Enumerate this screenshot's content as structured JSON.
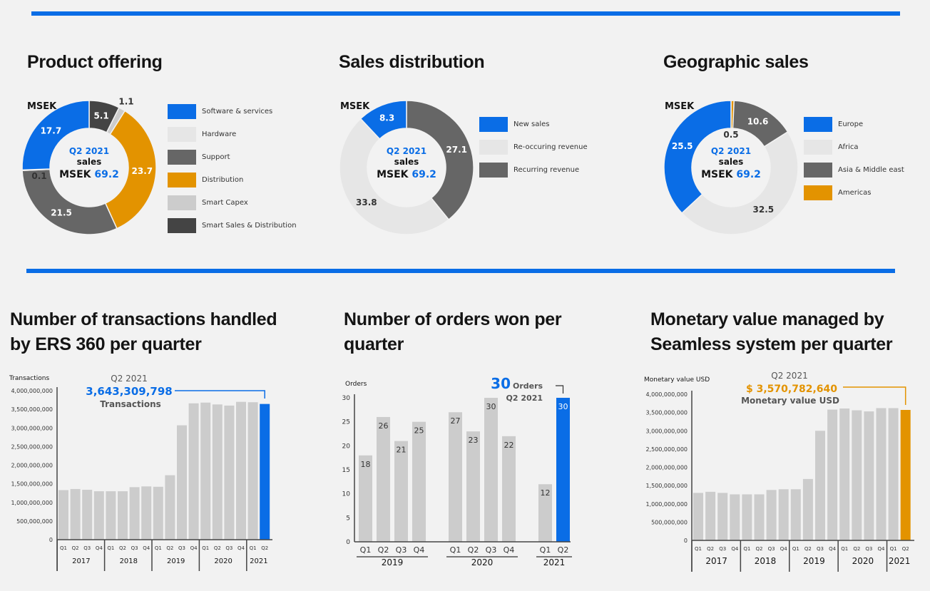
{
  "colors": {
    "blue": "#0a6de6",
    "orange": "#e39300",
    "dark": "#444444",
    "mid": "#666666",
    "light": "#e6e6e6",
    "smart_capex": "#cccccc",
    "bar_gray": "#cccccc"
  },
  "donuts": [
    {
      "title": "Product offering",
      "unit": "MSEK",
      "center_line1": "Q2 2021",
      "center_line2": "sales",
      "center_prefix": "MSEK",
      "center_value": "69.2",
      "slices": [
        {
          "name": "Smart Sales & Distribution",
          "value": 5.1,
          "color": "#444444",
          "label": "5.1"
        },
        {
          "name": "Smart Capex",
          "value": 1.1,
          "color": "#cccccc",
          "label": "1.1"
        },
        {
          "name": "Distribution",
          "value": 23.7,
          "color": "#e39300",
          "label": "23.7"
        },
        {
          "name": "Support",
          "value": 21.5,
          "color": "#666666",
          "label": "21.5"
        },
        {
          "name": "Hardware",
          "value": 0.1,
          "color": "#e6e6e6",
          "label": "0.1"
        },
        {
          "name": "Software & services",
          "value": 17.7,
          "color": "#0a6de6",
          "label": "17.7"
        }
      ],
      "legend": [
        {
          "label": "Software & services",
          "color": "#0a6de6"
        },
        {
          "label": "Hardware",
          "color": "#e6e6e6"
        },
        {
          "label": "Support",
          "color": "#666666"
        },
        {
          "label": "Distribution",
          "color": "#e39300"
        },
        {
          "label": "Smart Capex",
          "color": "#cccccc"
        },
        {
          "label": "Smart Sales & Distribution",
          "color": "#444444"
        }
      ]
    },
    {
      "title": "Sales distribution",
      "unit": "MSEK",
      "center_line1": "Q2 2021",
      "center_line2": "sales",
      "center_prefix": "MSEK",
      "center_value": "69.2",
      "slices": [
        {
          "name": "Recurring revenue",
          "value": 27.1,
          "color": "#666666",
          "label": "27.1"
        },
        {
          "name": "Re-occuring revenue",
          "value": 33.8,
          "color": "#e6e6e6",
          "label": "33.8"
        },
        {
          "name": "New sales",
          "value": 8.3,
          "color": "#0a6de6",
          "label": "8.3"
        }
      ],
      "legend": [
        {
          "label": "New sales",
          "color": "#0a6de6"
        },
        {
          "label": "Re-occuring revenue",
          "color": "#e6e6e6"
        },
        {
          "label": "Recurring revenue",
          "color": "#666666"
        }
      ]
    },
    {
      "title": "Geographic sales",
      "unit": "MSEK",
      "center_line1": "Q2 2021",
      "center_line2": "sales",
      "center_prefix": "MSEK",
      "center_value": "69.2",
      "slices": [
        {
          "name": "Americas",
          "value": 0.5,
          "color": "#e39300",
          "label": "0.5"
        },
        {
          "name": "Asia & Middle east",
          "value": 10.6,
          "color": "#666666",
          "label": "10.6"
        },
        {
          "name": "Africa",
          "value": 32.5,
          "color": "#e6e6e6",
          "label": "32.5"
        },
        {
          "name": "Europe",
          "value": 25.5,
          "color": "#0a6de6",
          "label": "25.5"
        }
      ],
      "legend": [
        {
          "label": "Europe",
          "color": "#0a6de6"
        },
        {
          "label": "Africa",
          "color": "#e6e6e6"
        },
        {
          "label": "Asia & Middle east",
          "color": "#666666"
        },
        {
          "label": "Americas",
          "color": "#e39300"
        }
      ]
    }
  ],
  "chart_data": [
    {
      "type": "pie",
      "title": "Product offering",
      "categories": [
        "Smart Sales & Distribution",
        "Smart Capex",
        "Distribution",
        "Support",
        "Hardware",
        "Software & services"
      ],
      "values": [
        5.1,
        1.1,
        23.7,
        21.5,
        0.1,
        17.7
      ]
    },
    {
      "type": "pie",
      "title": "Sales distribution",
      "categories": [
        "Recurring revenue",
        "Re-occuring revenue",
        "New sales"
      ],
      "values": [
        27.1,
        33.8,
        8.3
      ]
    },
    {
      "type": "pie",
      "title": "Geographic sales",
      "categories": [
        "Americas",
        "Asia & Middle east",
        "Africa",
        "Europe"
      ],
      "values": [
        0.5,
        10.6,
        32.5,
        25.5
      ]
    },
    {
      "type": "bar",
      "title_lines": [
        "Number of transactions handled",
        "by ERS 360 per quarter"
      ],
      "ylabel": "Transactions",
      "ylim": [
        0,
        4000000000
      ],
      "yticks": [
        "0",
        "500,000,000",
        "1,000,000,000",
        "1,500,000,000",
        "2,000,000,000",
        "2,500,000,000",
        "3,000,000,000",
        "3,500,000,000",
        "4,000,000,000"
      ],
      "years": [
        {
          "label": "2017",
          "quarters": [
            "Q1",
            "Q2",
            "Q3",
            "Q4"
          ]
        },
        {
          "label": "2018",
          "quarters": [
            "Q1",
            "Q2",
            "Q3",
            "Q4"
          ]
        },
        {
          "label": "2019",
          "quarters": [
            "Q1",
            "Q2",
            "Q3",
            "Q4"
          ]
        },
        {
          "label": "2020",
          "quarters": [
            "Q1",
            "Q2",
            "Q3",
            "Q4"
          ]
        },
        {
          "label": "2021",
          "quarters": [
            "Q1",
            "Q2"
          ]
        }
      ],
      "values": [
        1330000000,
        1360000000,
        1340000000,
        1300000000,
        1300000000,
        1300000000,
        1410000000,
        1430000000,
        1420000000,
        1730000000,
        3070000000,
        3660000000,
        3680000000,
        3630000000,
        3600000000,
        3700000000,
        3690000000,
        3643309798
      ],
      "highlight_color": "#0a6de6",
      "annotation": {
        "line1": "Q2 2021",
        "value": "3,643,309,798",
        "line3": "Transactions"
      }
    },
    {
      "type": "bar",
      "title_lines": [
        "Number of orders won per",
        "quarter"
      ],
      "ylabel": "Orders",
      "ylim": [
        0,
        30
      ],
      "yticks": [
        "0",
        "5",
        "10",
        "15",
        "20",
        "25",
        "30"
      ],
      "years": [
        {
          "label": "2019",
          "quarters": [
            "Q1",
            "Q2",
            "Q3",
            "Q4"
          ]
        },
        {
          "label": "2020",
          "quarters": [
            "Q1",
            "Q2",
            "Q3",
            "Q4"
          ]
        },
        {
          "label": "2021",
          "quarters": [
            "Q1",
            "Q2"
          ]
        }
      ],
      "values": [
        18,
        26,
        21,
        25,
        27,
        23,
        30,
        22,
        12,
        30
      ],
      "highlight_color": "#0a6de6",
      "annotation": {
        "value": "30",
        "unit": "Orders",
        "line2": "Q2 2021"
      }
    },
    {
      "type": "bar",
      "title_lines": [
        "Monetary value managed by",
        "Seamless system per quarter"
      ],
      "ylabel": "Monetary value USD",
      "ylim": [
        0,
        4000000000
      ],
      "yticks": [
        "0",
        "500,000,000",
        "1,000,000,000",
        "1,500,000,000",
        "2,000,000,000",
        "2,500,000,000",
        "3,000,000,000",
        "3,500,000,000",
        "4,000,000,000"
      ],
      "years": [
        {
          "label": "2017",
          "quarters": [
            "Q1",
            "Q2",
            "Q3",
            "Q4"
          ]
        },
        {
          "label": "2018",
          "quarters": [
            "Q1",
            "Q2",
            "Q3",
            "Q4"
          ]
        },
        {
          "label": "2019",
          "quarters": [
            "Q1",
            "Q2",
            "Q3",
            "Q4"
          ]
        },
        {
          "label": "2020",
          "quarters": [
            "Q1",
            "Q2",
            "Q3",
            "Q4"
          ]
        },
        {
          "label": "2021",
          "quarters": [
            "Q1",
            "Q2"
          ]
        }
      ],
      "values": [
        1300000000,
        1330000000,
        1300000000,
        1260000000,
        1260000000,
        1260000000,
        1380000000,
        1400000000,
        1400000000,
        1680000000,
        3000000000,
        3580000000,
        3610000000,
        3560000000,
        3530000000,
        3620000000,
        3620000000,
        3570782640
      ],
      "highlight_color": "#e39300",
      "annotation": {
        "line1": "Q2 2021",
        "value": "$  3,570,782,640",
        "line3": "Monetary value USD"
      }
    }
  ]
}
